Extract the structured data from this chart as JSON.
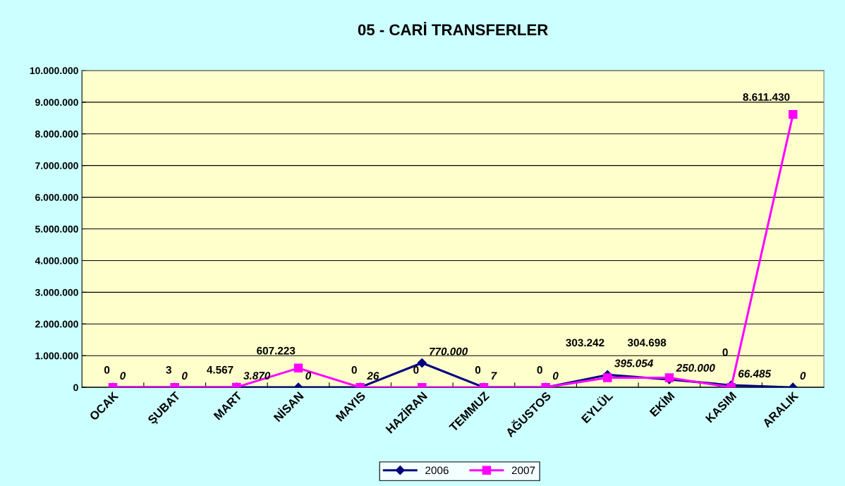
{
  "chart_data": {
    "type": "line",
    "title": "05 - CARİ TRANSFERLER",
    "categories": [
      "OCAK",
      "ŞUBAT",
      "MART",
      "NİSAN",
      "MAYIS",
      "HAZİRAN",
      "TEMMUZ",
      "AĞUSTOS",
      "EYLÜL",
      "EKİM",
      "KASIM",
      "ARALIK"
    ],
    "series": [
      {
        "name": "2006",
        "color": "#000080",
        "marker": "diamond",
        "values": [
          0,
          0,
          3870,
          0,
          26,
          770000,
          7,
          0,
          395054,
          250000,
          66485,
          0
        ],
        "value_labels": [
          "0",
          "0",
          "3.870",
          "0",
          "26",
          "770.000",
          "7",
          "0",
          "395.054",
          "250.000",
          "66.485",
          "0"
        ]
      },
      {
        "name": "2007",
        "color": "#ff00ff",
        "marker": "square",
        "values": [
          0,
          3,
          4567,
          607223,
          0,
          0,
          0,
          0,
          303242,
          304698,
          0,
          8611430
        ],
        "value_labels": [
          "0",
          "3",
          "4.567",
          "607.223",
          "0",
          "0",
          "0",
          "0",
          "303.242",
          "304.698",
          "0",
          "8.611.430"
        ]
      }
    ],
    "ylim": [
      0,
      10000000
    ],
    "yticks": [
      {
        "value": 0,
        "label": "0"
      },
      {
        "value": 1000000,
        "label": "1.000.000"
      },
      {
        "value": 2000000,
        "label": "2.000.000"
      },
      {
        "value": 3000000,
        "label": "3.000.000"
      },
      {
        "value": 4000000,
        "label": "4.000.000"
      },
      {
        "value": 5000000,
        "label": "5.000.000"
      },
      {
        "value": 6000000,
        "label": "6.000.000"
      },
      {
        "value": 7000000,
        "label": "7.000.000"
      },
      {
        "value": 8000000,
        "label": "8.000.000"
      },
      {
        "value": 9000000,
        "label": "9.000.000"
      },
      {
        "value": 10000000,
        "label": "10.000.000"
      }
    ],
    "grid": "y",
    "legend": "bottom",
    "line_style": "solid"
  }
}
